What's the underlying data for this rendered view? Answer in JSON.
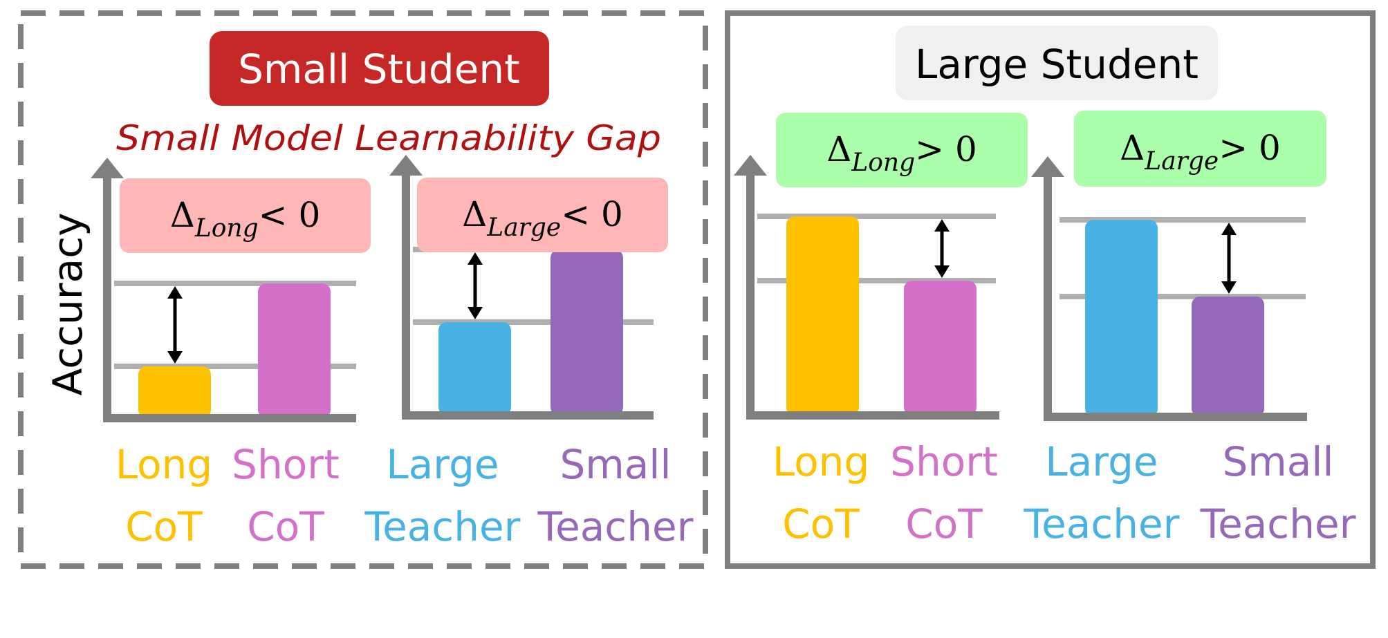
{
  "panels": {
    "small": {
      "title": "Small Student",
      "subtitle": "Small Model Learnability Gap",
      "y_axis_label": "Accuracy",
      "charts": [
        {
          "delta": {
            "symbol": "Δ",
            "subscript": "Long",
            "relation": "< 0"
          },
          "bars": [
            {
              "label_line1": "Long",
              "label_line2": "CoT",
              "value": 0.25,
              "color": "#FFC000"
            },
            {
              "label_line1": "Short",
              "label_line2": "CoT",
              "value": 0.65,
              "color": "#D46FCA"
            }
          ]
        },
        {
          "delta": {
            "symbol": "Δ",
            "subscript": "Large",
            "relation": "< 0"
          },
          "bars": [
            {
              "label_line1": "Large",
              "label_line2": "Teacher",
              "value": 0.45,
              "color": "#47B2E3"
            },
            {
              "label_line1": "Small",
              "label_line2": "Teacher",
              "value": 0.8,
              "color": "#9568BA"
            }
          ]
        }
      ]
    },
    "large": {
      "title": "Large Student",
      "charts": [
        {
          "delta": {
            "symbol": "Δ",
            "subscript": "Long",
            "relation": "> 0"
          },
          "bars": [
            {
              "label_line1": "Long",
              "label_line2": "CoT",
              "value": 0.96,
              "color": "#FFC000"
            },
            {
              "label_line1": "Short",
              "label_line2": "CoT",
              "value": 0.65,
              "color": "#D46FCA"
            }
          ]
        },
        {
          "delta": {
            "symbol": "Δ",
            "subscript": "Large",
            "relation": "> 0"
          },
          "bars": [
            {
              "label_line1": "Large",
              "label_line2": "Teacher",
              "value": 0.95,
              "color": "#47B2E3"
            },
            {
              "label_line1": "Small",
              "label_line2": "Teacher",
              "value": 0.58,
              "color": "#9568BA"
            }
          ]
        }
      ]
    }
  },
  "colors": {
    "small_title_bg": "#C62828",
    "small_subtitle": "#B01010",
    "large_title_bg": "#F0F0F0",
    "negative_delta_bg": "#FFB6B6",
    "positive_delta_bg": "#ABFFAB",
    "axis": "#7F7F7F",
    "reference_line": "#AFAFAF",
    "border": "#7F7F7F",
    "long_cot": "#FFC000",
    "short_cot": "#D46FCA",
    "large_teacher": "#47B2E3",
    "small_teacher": "#9568BA"
  }
}
